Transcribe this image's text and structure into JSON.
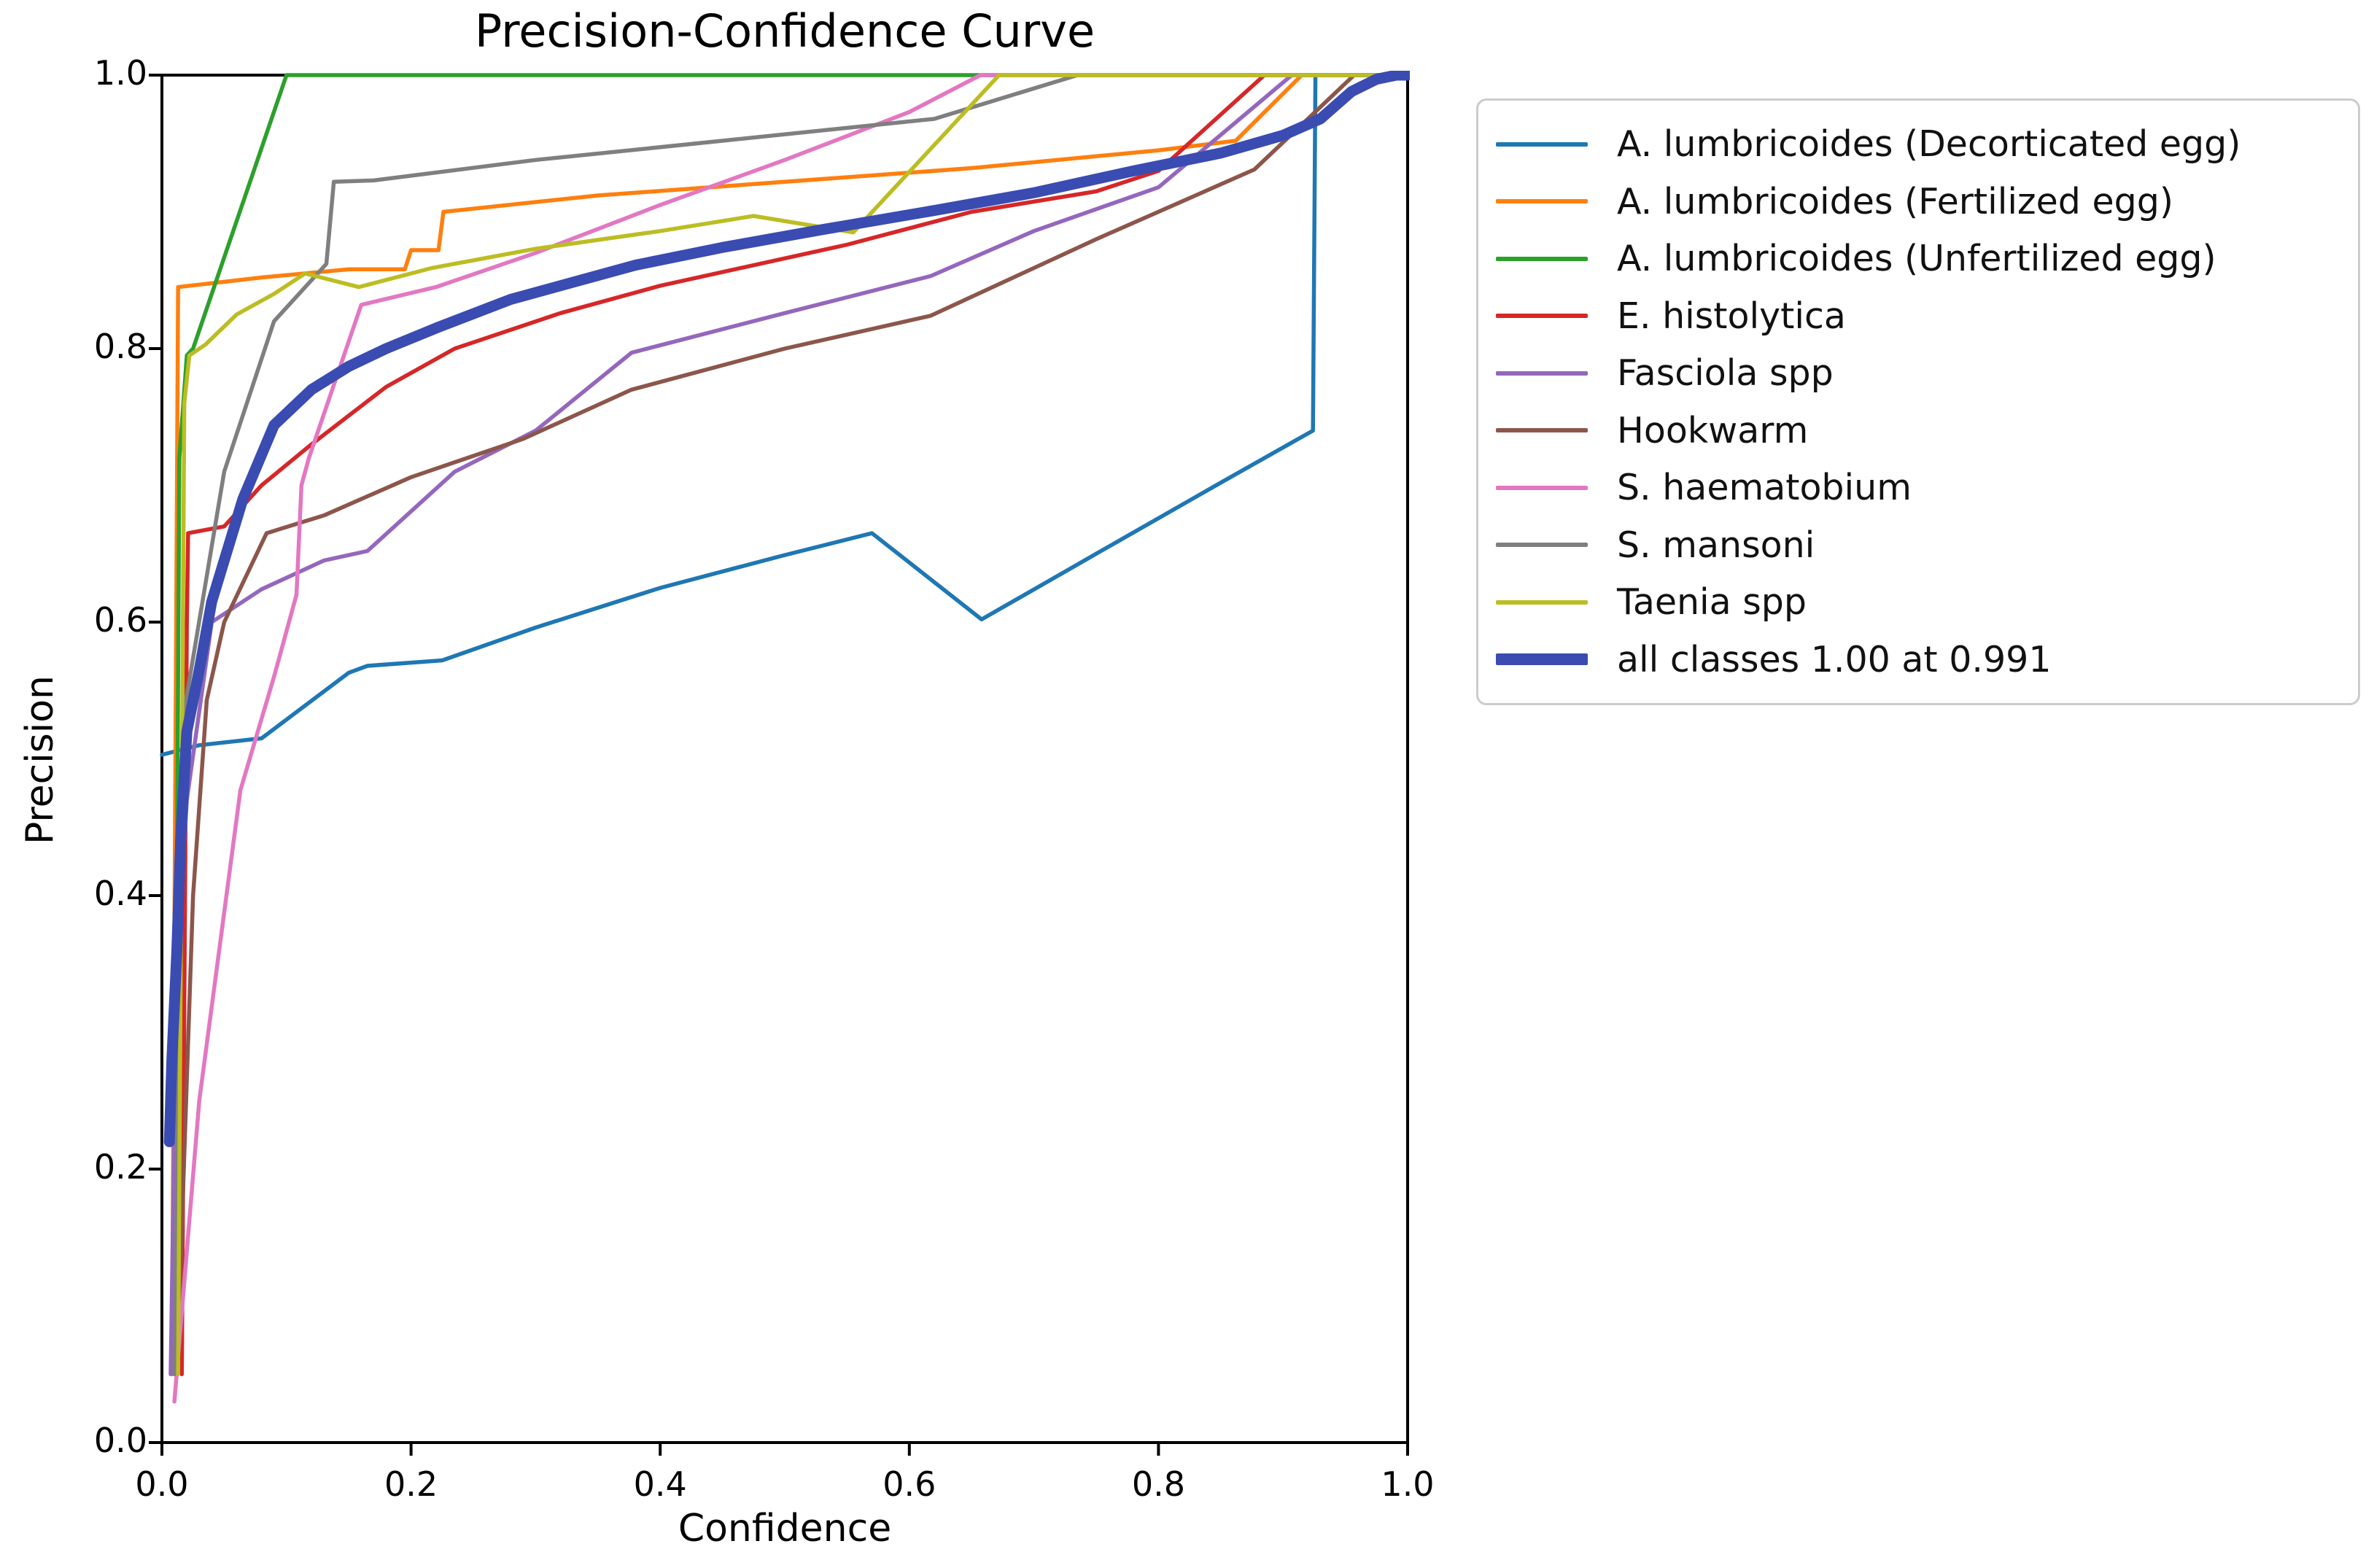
{
  "title": "Precision-Confidence Curve",
  "x_axis": {
    "label": "Confidence",
    "tick_labels": [
      "0.0",
      "0.2",
      "0.4",
      "0.6",
      "0.8",
      "1.0"
    ]
  },
  "y_axis": {
    "label": "Precision",
    "tick_labels": [
      "0.0",
      "0.2",
      "0.4",
      "0.6",
      "0.8",
      "1.0"
    ]
  },
  "colors": {
    "spine": "#000000",
    "legend_border": "#cccccc",
    "background": "#ffffff"
  },
  "chart_data": {
    "type": "line",
    "title": "Precision-Confidence Curve",
    "xlabel": "Confidence",
    "ylabel": "Precision",
    "xlim": [
      0.0,
      1.0
    ],
    "ylim": [
      0.0,
      1.0
    ],
    "x_ticks": [
      0.0,
      0.2,
      0.4,
      0.6,
      0.8,
      1.0
    ],
    "y_ticks": [
      0.0,
      0.2,
      0.4,
      0.6,
      0.8,
      1.0
    ],
    "grid": false,
    "legend_position": "outside-top-right",
    "series": [
      {
        "name": "A. lumbricoides (Decorticated egg)",
        "legend_label": "A. lumbricoides (Decorticated egg)",
        "color": "#1f77b4",
        "linewidth": 5.5,
        "points": [
          [
            0.0,
            0.503
          ],
          [
            0.03,
            0.51
          ],
          [
            0.08,
            0.515
          ],
          [
            0.15,
            0.563
          ],
          [
            0.165,
            0.568
          ],
          [
            0.225,
            0.572
          ],
          [
            0.3,
            0.596
          ],
          [
            0.4,
            0.625
          ],
          [
            0.5,
            0.649
          ],
          [
            0.57,
            0.665
          ],
          [
            0.658,
            0.602
          ],
          [
            0.75,
            0.65
          ],
          [
            0.85,
            0.702
          ],
          [
            0.924,
            0.74
          ],
          [
            0.926,
            1.0
          ],
          [
            1.0,
            1.0
          ]
        ]
      },
      {
        "name": "A. lumbricoides (Fertilized egg)",
        "legend_label": "A. lumbricoides (Fertilized egg)",
        "color": "#ff7f0e",
        "linewidth": 5.5,
        "points": [
          [
            0.008,
            0.05
          ],
          [
            0.013,
            0.845
          ],
          [
            0.08,
            0.852
          ],
          [
            0.15,
            0.858
          ],
          [
            0.195,
            0.858
          ],
          [
            0.2,
            0.872
          ],
          [
            0.222,
            0.872
          ],
          [
            0.226,
            0.9
          ],
          [
            0.35,
            0.912
          ],
          [
            0.5,
            0.922
          ],
          [
            0.65,
            0.932
          ],
          [
            0.8,
            0.945
          ],
          [
            0.862,
            0.952
          ],
          [
            0.915,
            1.0
          ],
          [
            1.0,
            1.0
          ]
        ]
      },
      {
        "name": "A. lumbricoides (Unfertilized egg)",
        "legend_label": "A. lumbricoides (Unfertilized egg)",
        "color": "#2ca02c",
        "linewidth": 5.5,
        "points": [
          [
            0.01,
            0.08
          ],
          [
            0.014,
            0.72
          ],
          [
            0.02,
            0.795
          ],
          [
            0.025,
            0.8
          ],
          [
            0.1,
            1.0
          ],
          [
            1.0,
            1.0
          ]
        ]
      },
      {
        "name": "E. histolytica",
        "legend_label": "E. histolytica",
        "color": "#d62728",
        "linewidth": 5.5,
        "points": [
          [
            0.016,
            0.05
          ],
          [
            0.02,
            0.6
          ],
          [
            0.021,
            0.665
          ],
          [
            0.05,
            0.67
          ],
          [
            0.08,
            0.7
          ],
          [
            0.12,
            0.73
          ],
          [
            0.18,
            0.772
          ],
          [
            0.235,
            0.8
          ],
          [
            0.32,
            0.826
          ],
          [
            0.4,
            0.846
          ],
          [
            0.55,
            0.876
          ],
          [
            0.65,
            0.9
          ],
          [
            0.75,
            0.915
          ],
          [
            0.8,
            0.93
          ],
          [
            0.885,
            1.0
          ],
          [
            1.0,
            1.0
          ]
        ]
      },
      {
        "name": "Fasciola spp",
        "legend_label": "Fasciola spp",
        "color": "#9467bd",
        "linewidth": 5.5,
        "points": [
          [
            0.007,
            0.05
          ],
          [
            0.012,
            0.35
          ],
          [
            0.02,
            0.47
          ],
          [
            0.04,
            0.6
          ],
          [
            0.08,
            0.624
          ],
          [
            0.13,
            0.645
          ],
          [
            0.165,
            0.652
          ],
          [
            0.235,
            0.71
          ],
          [
            0.3,
            0.74
          ],
          [
            0.377,
            0.797
          ],
          [
            0.5,
            0.826
          ],
          [
            0.617,
            0.853
          ],
          [
            0.7,
            0.886
          ],
          [
            0.8,
            0.918
          ],
          [
            0.907,
            1.0
          ],
          [
            1.0,
            1.0
          ]
        ]
      },
      {
        "name": "Hookwarm",
        "legend_label": "Hookwarm",
        "color": "#8c564b",
        "linewidth": 5.5,
        "points": [
          [
            0.012,
            0.05
          ],
          [
            0.025,
            0.4
          ],
          [
            0.036,
            0.543
          ],
          [
            0.05,
            0.6
          ],
          [
            0.084,
            0.665
          ],
          [
            0.13,
            0.678
          ],
          [
            0.2,
            0.706
          ],
          [
            0.29,
            0.734
          ],
          [
            0.377,
            0.77
          ],
          [
            0.5,
            0.8
          ],
          [
            0.617,
            0.824
          ],
          [
            0.75,
            0.88
          ],
          [
            0.877,
            0.931
          ],
          [
            0.957,
            1.0
          ],
          [
            1.0,
            1.0
          ]
        ]
      },
      {
        "name": "S. haematobium",
        "legend_label": "S. haematobium",
        "color": "#e377c2",
        "linewidth": 5.5,
        "points": [
          [
            0.01,
            0.03
          ],
          [
            0.03,
            0.25
          ],
          [
            0.063,
            0.477
          ],
          [
            0.09,
            0.56
          ],
          [
            0.108,
            0.62
          ],
          [
            0.112,
            0.7
          ],
          [
            0.118,
            0.72
          ],
          [
            0.16,
            0.832
          ],
          [
            0.22,
            0.845
          ],
          [
            0.3,
            0.87
          ],
          [
            0.4,
            0.905
          ],
          [
            0.5,
            0.938
          ],
          [
            0.6,
            0.973
          ],
          [
            0.657,
            1.0
          ],
          [
            1.0,
            1.0
          ]
        ]
      },
      {
        "name": "S. mansoni",
        "legend_label": "S. mansoni",
        "color": "#7f7f7f",
        "linewidth": 5.5,
        "points": [
          [
            0.01,
            0.05
          ],
          [
            0.017,
            0.53
          ],
          [
            0.05,
            0.71
          ],
          [
            0.09,
            0.82
          ],
          [
            0.132,
            0.862
          ],
          [
            0.138,
            0.922
          ],
          [
            0.17,
            0.923
          ],
          [
            0.3,
            0.938
          ],
          [
            0.45,
            0.952
          ],
          [
            0.62,
            0.968
          ],
          [
            0.735,
            1.0
          ],
          [
            1.0,
            1.0
          ]
        ]
      },
      {
        "name": "Taenia spp",
        "legend_label": "Taenia spp",
        "color": "#bcbd22",
        "linewidth": 5.5,
        "points": [
          [
            0.013,
            0.05
          ],
          [
            0.018,
            0.76
          ],
          [
            0.022,
            0.795
          ],
          [
            0.035,
            0.803
          ],
          [
            0.06,
            0.825
          ],
          [
            0.09,
            0.84
          ],
          [
            0.115,
            0.855
          ],
          [
            0.158,
            0.845
          ],
          [
            0.217,
            0.859
          ],
          [
            0.3,
            0.873
          ],
          [
            0.4,
            0.886
          ],
          [
            0.475,
            0.897
          ],
          [
            0.555,
            0.885
          ],
          [
            0.672,
            1.0
          ],
          [
            1.0,
            1.0
          ]
        ]
      },
      {
        "name": "all classes",
        "legend_label": "all classes 1.00 at 0.991",
        "color": "#3a4cb1",
        "linewidth": 15,
        "points": [
          [
            0.006,
            0.22
          ],
          [
            0.008,
            0.28
          ],
          [
            0.012,
            0.36
          ],
          [
            0.015,
            0.44
          ],
          [
            0.02,
            0.52
          ],
          [
            0.03,
            0.565
          ],
          [
            0.04,
            0.615
          ],
          [
            0.05,
            0.645
          ],
          [
            0.065,
            0.69
          ],
          [
            0.09,
            0.744
          ],
          [
            0.12,
            0.77
          ],
          [
            0.15,
            0.787
          ],
          [
            0.18,
            0.8
          ],
          [
            0.22,
            0.815
          ],
          [
            0.28,
            0.836
          ],
          [
            0.38,
            0.861
          ],
          [
            0.45,
            0.874
          ],
          [
            0.53,
            0.887
          ],
          [
            0.62,
            0.901
          ],
          [
            0.7,
            0.914
          ],
          [
            0.78,
            0.93
          ],
          [
            0.85,
            0.943
          ],
          [
            0.9,
            0.956
          ],
          [
            0.93,
            0.968
          ],
          [
            0.955,
            0.988
          ],
          [
            0.975,
            0.997
          ],
          [
            0.991,
            1.0
          ],
          [
            1.0,
            1.0
          ]
        ]
      }
    ]
  }
}
